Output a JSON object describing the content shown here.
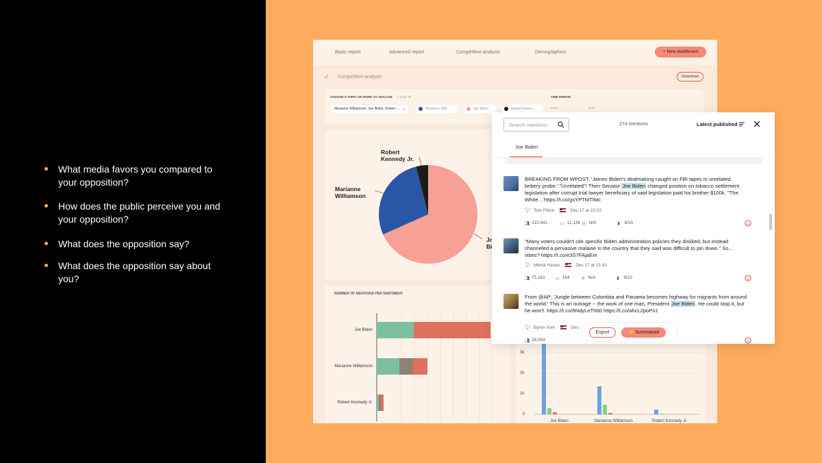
{
  "colors": {
    "accent": "#ffab5e",
    "coral": "#f58a78",
    "background_dark": "#000000"
  },
  "bullets": [
    "What media favors you compared to your opposition?",
    "How does the public perceive you and your opposition?",
    "What does the opposition say?",
    "What does the opposition say about you?"
  ],
  "nav": {
    "tabs": [
      "Basic report",
      "Advanced report",
      "Competitive analysis",
      "Demographics"
    ],
    "new_dashboard": "+ New dashboard"
  },
  "page": {
    "title": "Competitive analysis",
    "download": "Download"
  },
  "filters": {
    "topic_label": "CHOOSE A TOPIC OR MORE TO ANALYZE",
    "clear_all": "× Clear all",
    "time_label": "TIME PERIOD",
    "from": "From",
    "until": "Until",
    "selected": "Marianne Williamson, Joe Biden, Robert ...",
    "chips": [
      {
        "label": "Marianne Willi...",
        "color": "#2b56a5"
      },
      {
        "label": "Joe Biden",
        "color": "#f7a096"
      },
      {
        "label": "Robert Kenne...",
        "color": "#1e1a18"
      }
    ]
  },
  "pie": {
    "labels": {
      "rfk": "Robert\nKennedy Jr.",
      "mw": "Marianne\nWilliamson",
      "jb_cut": "Jo\nBi"
    }
  },
  "sentiment": {
    "title": "NUMBER OF MENTIONS PER SENTIMENT",
    "rows": [
      "Joe Biden",
      "Marianne Williamson",
      "Robert Kennedy Jr."
    ]
  },
  "bottom_chart": {
    "yticks": [
      "3k",
      "2k",
      "1k",
      "0"
    ],
    "xlabels": [
      "Joe Biden",
      "Marianne Williamson",
      "Robert Kennedy Jr."
    ]
  },
  "mentions": {
    "search_placeholder": "Search mentions",
    "count": "274 mentions",
    "sort": "Latest published",
    "tab": "Joe Biden",
    "posts": [
      {
        "text_before": "BREAKING FROM WPOST: 'James Biden's dealmaking caught on FBI tapes in unrelated bribery probe.' \"Unrelated\"! Then-Senator ",
        "highlight": "Joe Biden",
        "text_after": " changed position on tobacco settlement legislation after corrupt trial lawyer beneficiary of said legislation paid his brother $100k. \"The White... https://t.co/gsYPTMTIMc",
        "author": "Tom Fitton",
        "date": "Dec 17 at 22:02",
        "reach": "310,941",
        "comments": "11,136",
        "score": "N/A",
        "rating": "9/10",
        "avatar_color": "#4a6fa5"
      },
      {
        "text_before": "\"Many voters couldn't cite specific Biden administration policies they disliked, but instead channeled a pervasive malaise in the country that they said was difficult to pin down.\" So... vibes? https://t.co/e3S7FAjaEm",
        "highlight": "",
        "text_after": "",
        "author": "Mehdi Hasan",
        "date": "Dec 17 at 21:43",
        "reach": "75,161",
        "comments": "164",
        "score": "N/A",
        "rating": "9/10",
        "avatar_color": "#3b5675"
      },
      {
        "text_before": "From @AP: 'Jungle between Colombia and Panama becomes highway for migrants from around the world.' This is an outrage -- the work of one man, President ",
        "highlight": "Joe Biden",
        "text_after": ". He could stop it, but he won't. https://t.co/9NdyLeThb0 https://t.co/ahcL2poPo1",
        "author": "Byron York",
        "date": "Dec",
        "reach": "26,054",
        "comments": "",
        "score": "",
        "rating": "",
        "avatar_color": "#8a6a3a"
      }
    ],
    "export": "Export",
    "summarize": "✨ Summarize"
  }
}
